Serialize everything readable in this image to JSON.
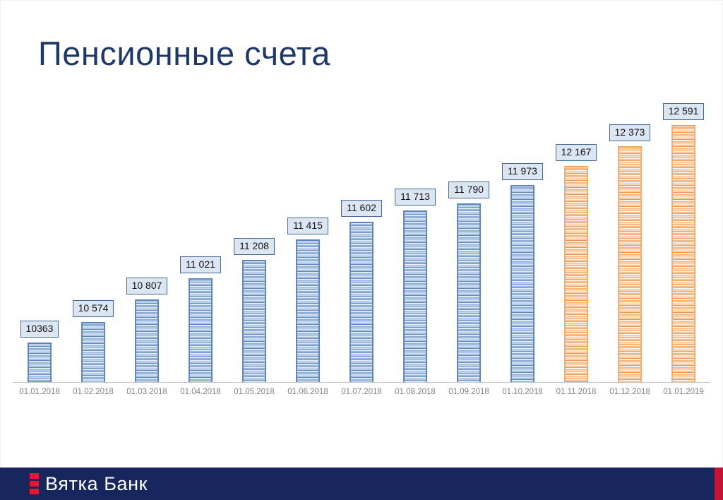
{
  "title": "Пенсионные счета",
  "chart_data": {
    "type": "bar",
    "title": "Пенсионные счета",
    "categories": [
      "01.01.2018",
      "01.02.2018",
      "01.03.2018",
      "01.04.2018",
      "01.05.2018",
      "01.06.2018",
      "01.07.2018",
      "01.08.2018",
      "01.09.2018",
      "01.10.2018",
      "01.11.2018",
      "01.12.2018",
      "01.01.2019"
    ],
    "values": [
      10363,
      10574,
      10807,
      11021,
      11208,
      11415,
      11602,
      11713,
      11790,
      11973,
      12167,
      12373,
      12591
    ],
    "value_labels": [
      "10363",
      "10 574",
      "10 807",
      "11 021",
      "11 208",
      "11 415",
      "11 602",
      "11 713",
      "11 790",
      "11 973",
      "12 167",
      "12 373",
      "12 591"
    ],
    "bar_colors": [
      "blue",
      "blue",
      "blue",
      "blue",
      "blue",
      "blue",
      "blue",
      "blue",
      "blue",
      "blue",
      "orange",
      "orange",
      "orange"
    ],
    "xlabel": "",
    "ylabel": "",
    "ylim": [
      9972,
      12872
    ],
    "grid": false,
    "legend": "none",
    "colors": {
      "blue_stripe_dark": "#5d89c0",
      "blue_stripe_light": "#d8e4f3",
      "orange_stripe_dark": "#f2944a",
      "orange_stripe_light": "#fdeadb",
      "value_box_bg": "#dce6f2",
      "value_box_border": "#47688f",
      "axis_line": "#c6c6c6",
      "tick_text": "#808080",
      "title_text": "#1e3868"
    }
  },
  "footer": {
    "brand": "Вятка Банк",
    "background": "#17265c",
    "accent_stripe": "#c11535",
    "logo_red": "#e31837"
  }
}
